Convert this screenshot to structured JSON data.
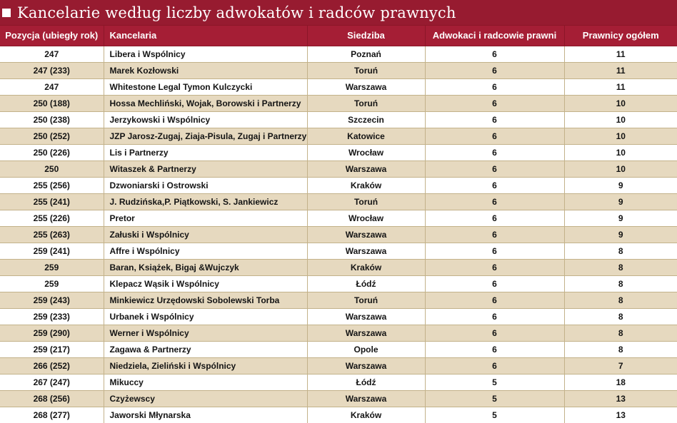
{
  "title": "Kancelarie według liczby adwokatów i radców prawnych",
  "colors": {
    "title_bar_bg": "#971b30",
    "header_bg": "#a51e35",
    "row_alt_bg": "#e6d9bf",
    "row_bg": "#ffffff",
    "border": "#c3b28a",
    "header_text": "#ffffff",
    "cell_text": "#141414"
  },
  "chart_data": {
    "type": "table",
    "title": "Kancelarie według liczby adwokatów i radców prawnych",
    "columns": [
      "Pozycja (ubiegły rok)",
      "Kancelaria",
      "Siedziba",
      "Adwokaci i radcowie prawni",
      "Prawnicy ogółem"
    ],
    "rows": [
      [
        "247",
        "Libera i Wspólnicy",
        "Poznań",
        "6",
        "11"
      ],
      [
        "247 (233)",
        "Marek Kozłowski",
        "Toruń",
        "6",
        "11"
      ],
      [
        "247",
        "Whitestone Legal Tymon Kulczycki",
        "Warszawa",
        "6",
        "11"
      ],
      [
        "250 (188)",
        "Hossa Mechliński, Wojak, Borowski i Partnerzy",
        "Toruń",
        "6",
        "10"
      ],
      [
        "250 (238)",
        "Jerzykowski i Wspólnicy",
        "Szczecin",
        "6",
        "10"
      ],
      [
        "250 (252)",
        "JZP Jarosz-Zugaj, Ziaja-Pisula, Zugaj i Partnerzy",
        "Katowice",
        "6",
        "10"
      ],
      [
        "250 (226)",
        "Lis i Partnerzy",
        "Wrocław",
        "6",
        "10"
      ],
      [
        "250",
        "Witaszek & Partnerzy",
        "Warszawa",
        "6",
        "10"
      ],
      [
        "255 (256)",
        "Dzwoniarski i Ostrowski",
        "Kraków",
        "6",
        "9"
      ],
      [
        "255 (241)",
        "J. Rudzińska,P. Piątkowski, S. Jankiewicz",
        "Toruń",
        "6",
        "9"
      ],
      [
        "255 (226)",
        "Pretor",
        "Wrocław",
        "6",
        "9"
      ],
      [
        "255 (263)",
        "Załuski i Wspólnicy",
        "Warszawa",
        "6",
        "9"
      ],
      [
        "259 (241)",
        "Affre i Wspólnicy",
        "Warszawa",
        "6",
        "8"
      ],
      [
        "259",
        "Baran, Książek, Bigaj &Wujczyk",
        "Kraków",
        "6",
        "8"
      ],
      [
        "259",
        "Klepacz Wąsik i Wspólnicy",
        "Łódź",
        "6",
        "8"
      ],
      [
        "259 (243)",
        "Minkiewicz Urzędowski Sobolewski Torba",
        "Toruń",
        "6",
        "8"
      ],
      [
        "259 (233)",
        "Urbanek i Wspólnicy",
        "Warszawa",
        "6",
        "8"
      ],
      [
        "259 (290)",
        "Werner i Wspólnicy",
        "Warszawa",
        "6",
        "8"
      ],
      [
        "259 (217)",
        "Zagawa & Partnerzy",
        "Opole",
        "6",
        "8"
      ],
      [
        "266 (252)",
        "Niedziela, Zieliński i Wspólnicy",
        "Warszawa",
        "6",
        "7"
      ],
      [
        "267 (247)",
        "Mikuccy",
        "Łódź",
        "5",
        "18"
      ],
      [
        "268 (256)",
        "Czyżewscy",
        "Warszawa",
        "5",
        "13"
      ],
      [
        "268 (277)",
        "Jaworski Młynarska",
        "Kraków",
        "5",
        "13"
      ]
    ]
  }
}
